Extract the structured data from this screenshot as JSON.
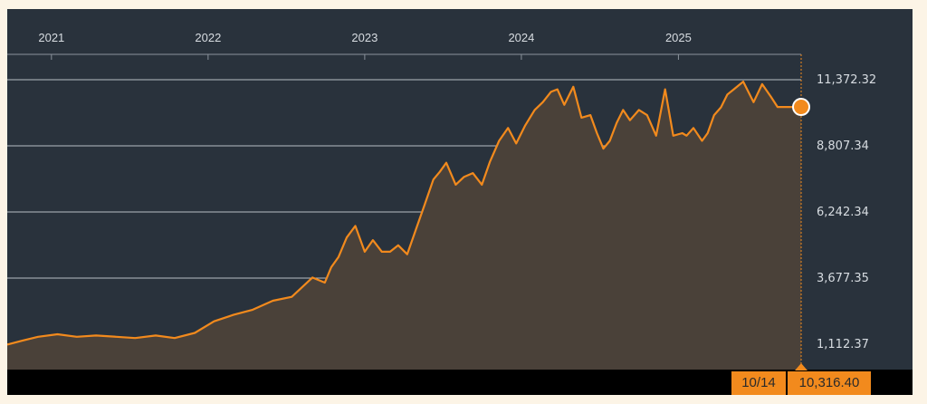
{
  "chart_data": {
    "type": "area",
    "x_tick_labels": [
      "2021",
      "2022",
      "2023",
      "2024",
      "2025"
    ],
    "y_tick_labels": [
      "11,372.32",
      "8,807.34",
      "6,242.34",
      "3,677.35",
      "1,112.37"
    ],
    "y_tick_values": [
      11372.32,
      8807.34,
      6242.34,
      3677.35,
      1112.37
    ],
    "ylim": [
      0,
      12400
    ],
    "x": [
      "2020-09-20",
      "2020-10-25",
      "2020-12-01",
      "2021-01-15",
      "2021-03-01",
      "2021-04-15",
      "2021-06-01",
      "2021-07-15",
      "2021-09-01",
      "2021-10-15",
      "2021-12-01",
      "2022-01-15",
      "2022-03-01",
      "2022-04-15",
      "2022-06-01",
      "2022-07-15",
      "2022-09-01",
      "2022-09-30",
      "2022-10-15",
      "2022-11-01",
      "2022-11-20",
      "2022-12-10",
      "2023-01-01",
      "2023-01-20",
      "2023-02-10",
      "2023-03-01",
      "2023-03-20",
      "2023-04-10",
      "2023-05-01",
      "2023-05-20",
      "2023-06-10",
      "2023-06-25",
      "2023-07-10",
      "2023-08-01",
      "2023-08-20",
      "2023-09-10",
      "2023-10-01",
      "2023-10-20",
      "2023-11-10",
      "2023-12-01",
      "2023-12-20",
      "2024-01-10",
      "2024-02-01",
      "2024-02-20",
      "2024-03-10",
      "2024-03-25",
      "2024-04-10",
      "2024-05-01",
      "2024-05-20",
      "2024-06-10",
      "2024-06-25",
      "2024-07-10",
      "2024-07-25",
      "2024-08-10",
      "2024-08-25",
      "2024-09-10",
      "2024-10-01",
      "2024-10-20",
      "2024-11-10",
      "2024-12-01",
      "2024-12-20",
      "2025-01-10",
      "2025-01-20",
      "2025-02-05",
      "2025-02-25",
      "2025-03-10",
      "2025-03-25",
      "2025-04-10",
      "2025-04-25",
      "2025-05-10",
      "2025-06-01",
      "2025-06-25",
      "2025-07-15",
      "2025-08-05",
      "2025-08-20",
      "2025-09-05",
      "2025-09-20",
      "2025-10-01",
      "2025-10-14"
    ],
    "values": [
      1100,
      1250,
      1400,
      1500,
      1400,
      1450,
      1400,
      1350,
      1450,
      1350,
      1550,
      2000,
      2250,
      2450,
      2800,
      2950,
      3700,
      3500,
      4100,
      4500,
      5250,
      5700,
      4700,
      5150,
      4700,
      4700,
      4950,
      4600,
      5600,
      6500,
      7500,
      7800,
      8150,
      7300,
      7600,
      7750,
      7300,
      8200,
      9000,
      9500,
      8900,
      9600,
      10200,
      10500,
      10900,
      11000,
      10400,
      11100,
      9900,
      10000,
      9300,
      8700,
      9000,
      9700,
      10200,
      9800,
      10200,
      10000,
      9200,
      11000,
      9200,
      9300,
      9200,
      9500,
      9000,
      9300,
      10000,
      10300,
      10800,
      11000,
      11300,
      10500,
      11200,
      10700,
      10316.4,
      10316.4,
      10316.4,
      10316.4,
      10316.4
    ],
    "last_point": {
      "date_label": "10/14",
      "value_label": "10,316.40",
      "value": 10316.4
    },
    "grid": true,
    "colors": {
      "line": "#f28a1d",
      "area": "#4a4139",
      "background": "#29323c",
      "badge": "#f28a1d"
    }
  }
}
